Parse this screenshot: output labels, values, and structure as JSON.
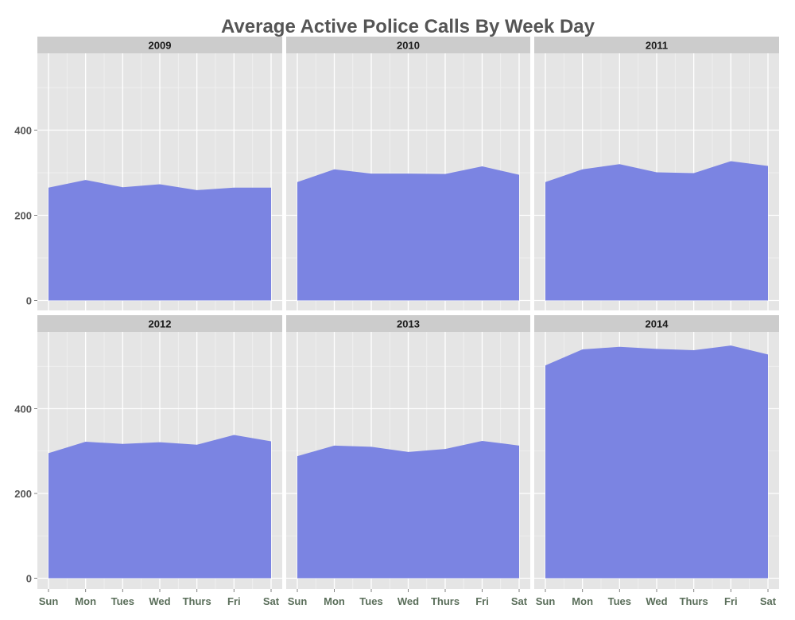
{
  "chart_data": {
    "type": "area",
    "title": "Average Active Police Calls By Week Day",
    "xlabel": "",
    "ylabel": "",
    "categories": [
      "Sun",
      "Mon",
      "Tues",
      "Wed",
      "Thurs",
      "Fri",
      "Sat"
    ],
    "ylim": [
      0,
      580
    ],
    "y_ticks": [
      0,
      200,
      400
    ],
    "y_tick_labels": [
      "0",
      "200",
      "400"
    ],
    "grid": true,
    "legend": "none",
    "fill_color": "#7b84e2",
    "panel_background": "#e5e5e5",
    "strip_background": "#cccccc",
    "facets": [
      {
        "label": "2009",
        "values": [
          265,
          283,
          266,
          273,
          259,
          265,
          265
        ]
      },
      {
        "label": "2010",
        "values": [
          278,
          308,
          298,
          298,
          297,
          315,
          295
        ]
      },
      {
        "label": "2011",
        "values": [
          278,
          308,
          320,
          301,
          299,
          327,
          316
        ]
      },
      {
        "label": "2012",
        "values": [
          295,
          322,
          317,
          321,
          315,
          338,
          323
        ]
      },
      {
        "label": "2013",
        "values": [
          288,
          313,
          310,
          298,
          305,
          324,
          313
        ]
      },
      {
        "label": "2014",
        "values": [
          502,
          540,
          546,
          541,
          538,
          549,
          528
        ]
      }
    ]
  }
}
